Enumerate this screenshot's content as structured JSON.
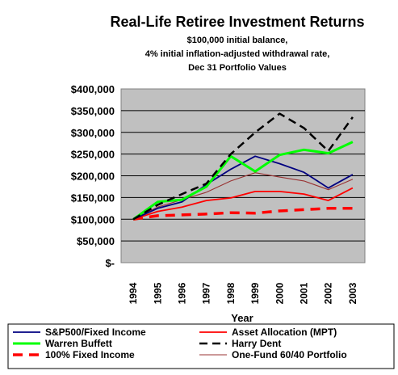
{
  "chart_data": {
    "type": "line",
    "title": "Real-Life Retiree Investment Returns",
    "subtitle_lines": [
      "$100,000 initial balance,",
      "4% initial inflation-adjusted withdrawal rate,",
      "Dec 31 Portfolio Values"
    ],
    "xlabel": "Year",
    "ylabel": "",
    "x": [
      "1994",
      "1995",
      "1996",
      "1997",
      "1998",
      "1999",
      "2000",
      "2001",
      "2002",
      "2003"
    ],
    "ylim": [
      0,
      400000
    ],
    "ytick_labels": [
      "$400,000",
      "$350,000",
      "$300,000",
      "$250,000",
      "$200,000",
      "$150,000",
      "$100,000",
      "$50,000",
      "$-"
    ],
    "grid": "horizontal",
    "legend_position": "bottom",
    "series": [
      {
        "name": "S&P500/Fixed Income",
        "color": "#000080",
        "style": "solid",
        "values": [
          100000,
          125000,
          140000,
          180000,
          215000,
          245000,
          228000,
          208000,
          172000,
          203000
        ]
      },
      {
        "name": "Asset Allocation (MPT)",
        "color": "#ff0000",
        "style": "solid",
        "values": [
          100000,
          118000,
          128000,
          143000,
          149000,
          164000,
          164000,
          158000,
          143000,
          172000
        ]
      },
      {
        "name": "Warren Buffett",
        "color": "#00ff00",
        "style": "solid-thick",
        "values": [
          100000,
          140000,
          145000,
          175000,
          245000,
          210000,
          248000,
          260000,
          252000,
          278000
        ]
      },
      {
        "name": "Harry Dent",
        "color": "#000000",
        "style": "dashed",
        "values": [
          100000,
          133000,
          158000,
          182000,
          250000,
          300000,
          343000,
          310000,
          257000,
          335000
        ]
      },
      {
        "name": "100% Fixed Income",
        "color": "#ff0000",
        "style": "dashed-thick",
        "values": [
          100000,
          108000,
          110000,
          112000,
          115000,
          114000,
          119000,
          122000,
          125000,
          125000
        ]
      },
      {
        "name": "One-Fund 60/40 Portfolio",
        "color": "#993333",
        "style": "solid-thin",
        "values": [
          100000,
          128000,
          145000,
          162000,
          188000,
          207000,
          197000,
          188000,
          168000,
          192000
        ]
      }
    ]
  }
}
